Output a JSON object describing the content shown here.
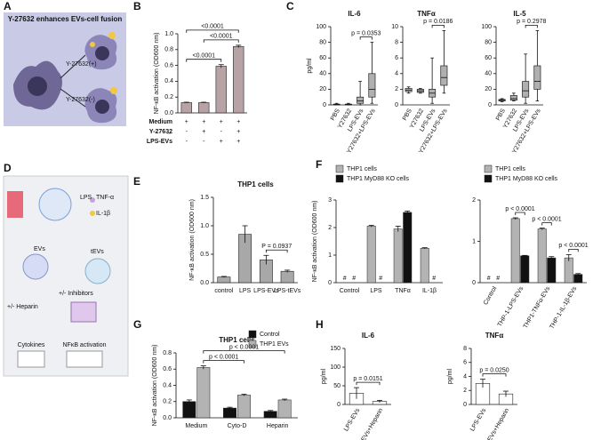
{
  "panel_labels": [
    "A",
    "B",
    "C",
    "D",
    "E",
    "F",
    "G",
    "H"
  ],
  "illustration": {
    "title": "Y-27632 enhances EVs-cell fusion",
    "plus": "Y-27632(+)",
    "minus": "Y-27632(-)"
  },
  "diagram": {
    "labels": [
      "LPS",
      "TNF-α",
      "IL-1β",
      "EVs",
      "tEVs",
      "+/- Heparin",
      "+/- Inhibitors",
      "Cytokines",
      "NFκB activation"
    ]
  },
  "chart_data": [
    {
      "type": "bar",
      "ylabel": "NF-κB activation (OD600 nm)",
      "values": [
        0.13,
        0.13,
        0.59,
        0.84
      ],
      "errors": [
        0.005,
        0.005,
        0.02,
        0.015
      ],
      "color": "#b7a3a6",
      "ylim": [
        0,
        1.0
      ],
      "yticks": [
        {
          "value": 0,
          "label": "0.0"
        },
        0.2,
        0.4,
        0.6,
        0.8,
        {
          "value": 1.0,
          "label": "1.0"
        }
      ],
      "conditions": [
        {
          "name": "Medium",
          "signs": [
            "+",
            "+",
            "+",
            "+"
          ]
        },
        {
          "name": "Y-2763̲2",
          "signs": [
            "-",
            "+",
            "-",
            "+"
          ]
        },
        {
          "name": "LPS-EVs",
          "signs": [
            "-",
            "-",
            "+",
            "+"
          ]
        }
      ],
      "brackets": [
        {
          "label": "<0.0001",
          "from": 0,
          "to": 2
        },
        {
          "label": "<0.0001",
          "from": 1,
          "to": 3
        },
        {
          "label": "<0.0001",
          "from": 0,
          "to": 3
        }
      ]
    },
    {
      "type": "box",
      "title": "IL-6",
      "ylabel": "pg/ml",
      "categories": [
        "PBS",
        "Y27632",
        "LPS-EVs",
        "Y27632+LPS-EVs"
      ],
      "color": "#b0b0b0",
      "boxes": [
        {
          "min": 0,
          "q1": 0,
          "median": 0.5,
          "q3": 1,
          "max": 2
        },
        {
          "min": 0,
          "q1": 0,
          "median": 0.5,
          "q3": 1,
          "max": 2
        },
        {
          "min": 0,
          "q1": 2,
          "median": 5,
          "q3": 10,
          "max": 30
        },
        {
          "min": 2,
          "q1": 10,
          "median": 20,
          "q3": 40,
          "max": 80
        }
      ],
      "ylim": [
        0,
        100
      ],
      "yticks": [
        0,
        20,
        40,
        60,
        80,
        100
      ],
      "brackets": [
        {
          "label": "p = 0.0353",
          "from": 2,
          "to": 3
        }
      ]
    },
    {
      "type": "box",
      "title": "TNFα",
      "categories": [
        "PBS",
        "Y27632",
        "LPS-EVs",
        "Y27632+LPS-EVs"
      ],
      "color": "#b0b0b0",
      "boxes": [
        {
          "min": 1.5,
          "q1": 1.7,
          "median": 1.9,
          "q3": 2.1,
          "max": 2.3
        },
        {
          "min": 1.5,
          "q1": 1.6,
          "median": 1.8,
          "q3": 2.0,
          "max": 2.1
        },
        {
          "min": 0.2,
          "q1": 1.0,
          "median": 1.5,
          "q3": 2.0,
          "max": 6.0
        },
        {
          "min": 1.5,
          "q1": 2.5,
          "median": 3.5,
          "q3": 5.0,
          "max": 9.5
        }
      ],
      "ylim": [
        0,
        10
      ],
      "yticks": [
        0,
        2,
        4,
        6,
        8,
        10
      ],
      "brackets": [
        {
          "label": "p = 0.0186",
          "from": 2,
          "to": 3
        }
      ]
    },
    {
      "type": "box",
      "title": "IL-5",
      "categories": [
        "PBS",
        "Y27632",
        "LPS-EVs",
        "Y27632+LPS-EVs"
      ],
      "color": "#b0b0b0",
      "boxes": [
        {
          "min": 4,
          "q1": 5,
          "median": 6,
          "q3": 7,
          "max": 8
        },
        {
          "min": 5,
          "q1": 6,
          "median": 8,
          "q3": 12,
          "max": 15
        },
        {
          "min": 2,
          "q1": 10,
          "median": 18,
          "q3": 30,
          "max": 65
        },
        {
          "min": 5,
          "q1": 20,
          "median": 30,
          "q3": 50,
          "max": 95
        }
      ],
      "ylim": [
        0,
        100
      ],
      "yticks": [
        0,
        20,
        40,
        60,
        80,
        100
      ],
      "brackets": [
        {
          "label": "p = 0.2978",
          "from": 2,
          "to": 3
        }
      ]
    },
    {
      "type": "bar",
      "title": "THP1 cells",
      "ylabel": "NF-κB activation (OD600 nm)",
      "categories": [
        "control",
        "LPS",
        "LPS-EVs",
        "LPS-tEVs"
      ],
      "values": [
        0.1,
        0.85,
        0.4,
        0.2
      ],
      "errors": [
        0.01,
        0.15,
        0.08,
        0.02
      ],
      "color": "#a8a8a8",
      "ylim": [
        0,
        1.5
      ],
      "yticks": [
        {
          "value": 0,
          "label": "0.0"
        },
        0.5,
        {
          "value": 1.0,
          "label": "1.0"
        },
        {
          "value": 1.5,
          "label": "1.5"
        }
      ],
      "brackets": [
        {
          "label": "P = 0.0937",
          "from": 2,
          "to": 3
        }
      ]
    },
    {
      "type": "bar",
      "ylabel": "NF-κB activation (OD600 nm)",
      "categories": [
        "Control",
        "LPS",
        "TNFα",
        "IL-1β"
      ],
      "series": [
        {
          "name": "THP1 cells",
          "color": "#b3b3b3",
          "values": [
            null,
            2.05,
            1.95,
            1.25
          ],
          "errors": [
            null,
            0.03,
            0.1,
            0.02
          ],
          "value_labels": [
            "#",
            null,
            null,
            null
          ]
        },
        {
          "name": "THP1 MyD88 KO cells",
          "color": "#111111",
          "values": [
            null,
            null,
            2.55,
            null
          ],
          "errors": [
            null,
            null,
            0.05,
            null
          ],
          "value_labels": [
            "#",
            "#",
            null,
            "#"
          ]
        }
      ],
      "ylim": [
        0,
        3
      ],
      "yticks": [
        0,
        1,
        2,
        3
      ]
    },
    {
      "type": "bar",
      "categories": [
        "Control",
        "THP-1-LPS-EVs",
        "THP1-TNFα-EVs",
        "THP-1-IL-1β-EVs"
      ],
      "series": [
        {
          "name": "THP1 cells",
          "color": "#b3b3b3",
          "values": [
            null,
            1.55,
            1.3,
            0.6
          ],
          "errors": [
            null,
            0.02,
            0.02,
            0.08
          ],
          "value_labels": [
            "#",
            null,
            null,
            null
          ]
        },
        {
          "name": "THP1 MyD88 KO cells",
          "color": "#111111",
          "values": [
            null,
            0.65,
            0.6,
            0.2
          ],
          "errors": [
            null,
            0.01,
            0.03,
            0.02
          ],
          "value_labels": [
            "#",
            null,
            null,
            null
          ]
        }
      ],
      "ylim": [
        0,
        2
      ],
      "yticks": [
        0,
        1,
        2
      ],
      "brackets": [
        {
          "label": "p < 0.0001",
          "from": [
            1,
            0
          ],
          "to": [
            1,
            1
          ]
        },
        {
          "label": "p < 0.0001",
          "from": [
            2,
            0
          ],
          "to": [
            2,
            1
          ]
        },
        {
          "label": "p < 0.0001",
          "from": [
            3,
            0
          ],
          "to": [
            3,
            1
          ]
        }
      ]
    },
    {
      "type": "bar",
      "title": "THP1 cells",
      "ylabel": "NF-κB activation (OD600 nm)",
      "categories": [
        "Medium",
        "Cyto-D",
        "Heparin"
      ],
      "series": [
        {
          "name": "Control",
          "color": "#111111",
          "values": [
            0.2,
            0.12,
            0.08
          ],
          "errors": [
            0.02,
            0.01,
            0.01
          ]
        },
        {
          "name": "THP1 EVs",
          "color": "#b3b3b3",
          "values": [
            0.62,
            0.28,
            0.22
          ],
          "errors": [
            0.02,
            0.01,
            0.01
          ]
        }
      ],
      "ylim": [
        0,
        0.8
      ],
      "yticks": [
        {
          "value": 0,
          "label": "0.0"
        },
        0.2,
        0.4,
        0.6,
        0.8
      ],
      "brackets": [
        {
          "label": "p < 0.0001",
          "from": [
            0,
            1
          ],
          "to": [
            1,
            1
          ]
        },
        {
          "label": "p < 0.0001",
          "from": [
            0,
            1
          ],
          "to": [
            2,
            1
          ]
        }
      ]
    },
    {
      "type": "bar",
      "title": "IL-6",
      "ylabel": "pg/ml",
      "categories": [
        "LPS-EVs",
        "LPS-EVs+Heparin"
      ],
      "values": [
        30,
        8
      ],
      "errors": [
        15,
        3
      ],
      "color": "#ffffff",
      "ylim": [
        0,
        150
      ],
      "yticks": [
        0,
        50,
        100,
        150
      ],
      "brackets": [
        {
          "label": "p = 0.0151",
          "from": 0,
          "to": 1
        }
      ]
    },
    {
      "type": "bar",
      "title": "TNFα",
      "ylabel": "pg/ml",
      "categories": [
        "LPS-EVs",
        "LPS-EVs+Heparin"
      ],
      "values": [
        3.0,
        1.5
      ],
      "errors": [
        0.6,
        0.4
      ],
      "color": "#ffffff",
      "ylim": [
        0,
        8
      ],
      "yticks": [
        0,
        2,
        4,
        6,
        8
      ],
      "brackets": [
        {
          "label": "p = 0.0250",
          "from": 0,
          "to": 1
        }
      ]
    }
  ]
}
